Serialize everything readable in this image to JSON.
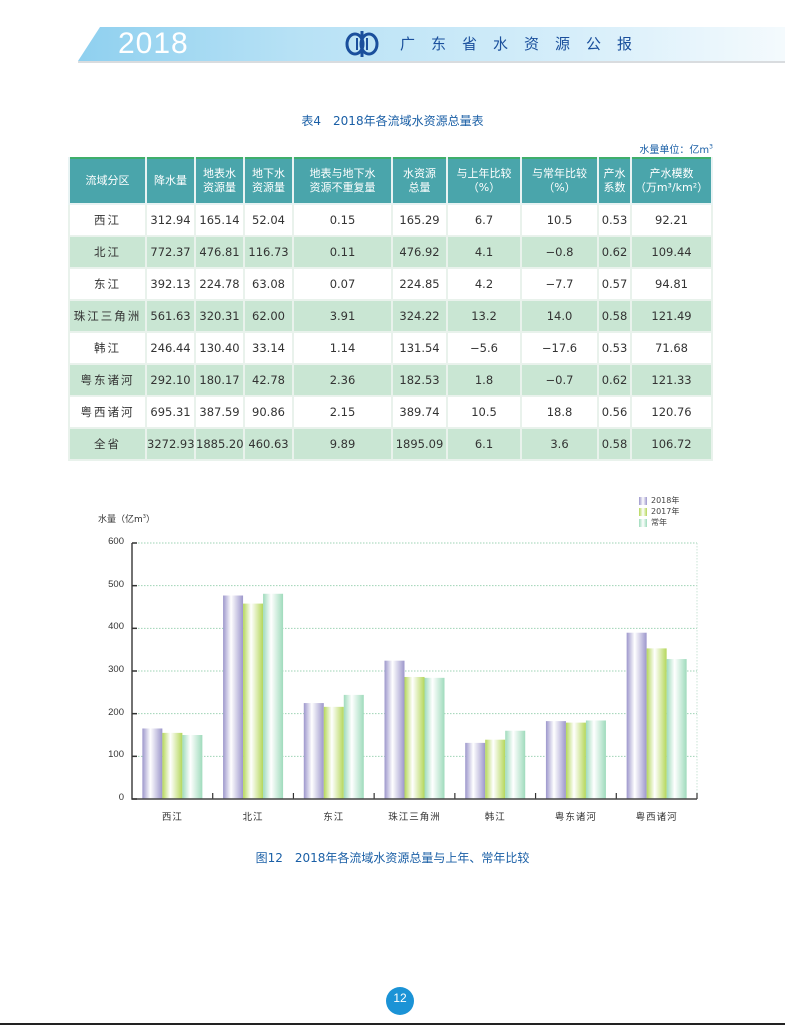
{
  "header": {
    "year": "2018",
    "title": "广东省水资源公报",
    "logo_icon": "water-resources-emblem-icon",
    "colors": {
      "band": "#b6e1f5",
      "title": "#1a4f9c"
    }
  },
  "table": {
    "title": "表4　2018年各流域水资源总量表",
    "unit_label": "水量单位：亿m",
    "unit_sup": "3",
    "columns": [
      {
        "l1": "流域分区",
        "l2": ""
      },
      {
        "l1": "降水量",
        "l2": ""
      },
      {
        "l1": "地表水",
        "l2": "资源量"
      },
      {
        "l1": "地下水",
        "l2": "资源量"
      },
      {
        "l1": "地表与地下水",
        "l2": "资源不重复量"
      },
      {
        "l1": "水资源",
        "l2": "总量"
      },
      {
        "l1": "与上年比较",
        "l2": "（%）"
      },
      {
        "l1": "与常年比较",
        "l2": "（%）"
      },
      {
        "l1": "产水",
        "l2": "系数"
      },
      {
        "l1": "产水模数",
        "l2": "（万m³/km²）"
      }
    ],
    "rows": [
      [
        "西江",
        "312.94",
        "165.14",
        "52.04",
        "0.15",
        "165.29",
        "6.7",
        "10.5",
        "0.53",
        "92.21"
      ],
      [
        "北江",
        "772.37",
        "476.81",
        "116.73",
        "0.11",
        "476.92",
        "4.1",
        "−0.8",
        "0.62",
        "109.44"
      ],
      [
        "东江",
        "392.13",
        "224.78",
        "63.08",
        "0.07",
        "224.85",
        "4.2",
        "−7.7",
        "0.57",
        "94.81"
      ],
      [
        "珠江三角洲",
        "561.63",
        "320.31",
        "62.00",
        "3.91",
        "324.22",
        "13.2",
        "14.0",
        "0.58",
        "121.49"
      ],
      [
        "韩江",
        "246.44",
        "130.40",
        "33.14",
        "1.14",
        "131.54",
        "−5.6",
        "−17.6",
        "0.53",
        "71.68"
      ],
      [
        "粤东诸河",
        "292.10",
        "180.17",
        "42.78",
        "2.36",
        "182.53",
        "1.8",
        "−0.7",
        "0.62",
        "121.33"
      ],
      [
        "粤西诸河",
        "695.31",
        "387.59",
        "90.86",
        "2.15",
        "389.74",
        "10.5",
        "18.8",
        "0.56",
        "120.76"
      ],
      [
        "全省",
        "3272.93",
        "1885.20",
        "460.63",
        "9.89",
        "1895.09",
        "6.1",
        "3.6",
        "0.58",
        "106.72"
      ]
    ],
    "colors": {
      "header_bg": "#4aa5ab",
      "even_row_bg": "#c9e6d3",
      "border": "#3fae6b"
    }
  },
  "chart_data": {
    "type": "bar",
    "title": "图12　2018年各流域水资源总量与上年、常年比较",
    "xlabel": "",
    "ylabel": "水量（亿m³）",
    "ylim": [
      0,
      600
    ],
    "yticks": [
      "0",
      "100",
      "200",
      "300",
      "400",
      "500",
      "600"
    ],
    "grid": true,
    "legend_position": "top-right",
    "categories": [
      "西江",
      "北江",
      "东江",
      "珠江三角洲",
      "韩江",
      "粤东诸河",
      "粤西诸河"
    ],
    "series": [
      {
        "name": "2018年",
        "color": "#9d97cc",
        "values": [
          165.29,
          476.92,
          224.85,
          324.22,
          131.54,
          182.53,
          389.74
        ]
      },
      {
        "name": "2017年",
        "color": "#b5d75a",
        "values": [
          155,
          458,
          216,
          286,
          139,
          179,
          353
        ]
      },
      {
        "name": "常年",
        "color": "#9fdbbc",
        "values": [
          150,
          481,
          244,
          284,
          160,
          184,
          328
        ]
      }
    ]
  },
  "page": {
    "number": "12"
  }
}
